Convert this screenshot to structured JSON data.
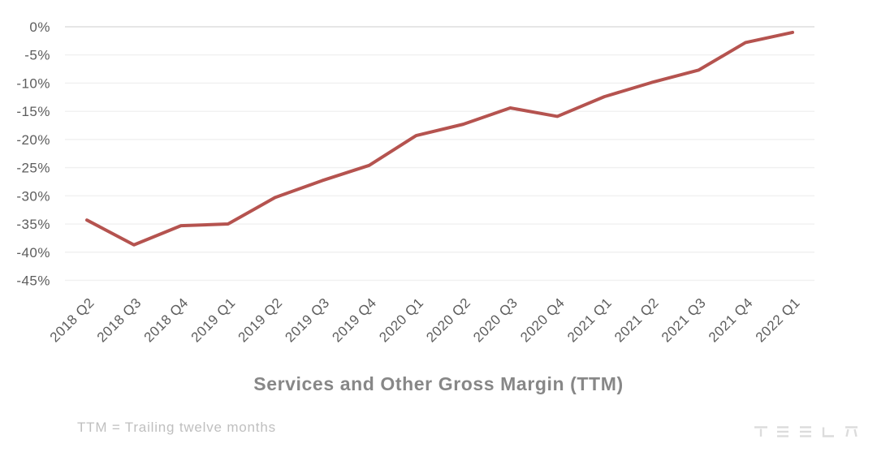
{
  "chart_data": {
    "type": "line",
    "title": "Services and Other Gross Margin (TTM)",
    "footnote": "TTM = Trailing twelve months",
    "categories": [
      "2018 Q2",
      "2018 Q3",
      "2018 Q4",
      "2019 Q1",
      "2019 Q2",
      "2019 Q3",
      "2019 Q4",
      "2020 Q1",
      "2020 Q2",
      "2020 Q3",
      "2020 Q4",
      "2021 Q1",
      "2021 Q2",
      "2021 Q3",
      "2021 Q4",
      "2022 Q1"
    ],
    "series": [
      {
        "name": "Services and Other Gross Margin (TTM)",
        "values": [
          -34.3,
          -38.7,
          -35.3,
          -35.0,
          -30.3,
          -27.3,
          -24.6,
          -19.3,
          -17.3,
          -14.4,
          -15.9,
          -12.4,
          -9.9,
          -7.7,
          -2.8,
          -1.0
        ]
      }
    ],
    "ylabel": "",
    "xlabel": "",
    "ylim": [
      -45,
      0
    ],
    "yticks": [
      0,
      -5,
      -10,
      -15,
      -20,
      -25,
      -30,
      -35,
      -40,
      -45
    ],
    "ytick_labels": [
      "0%",
      "-5%",
      "-10%",
      "-15%",
      "-20%",
      "-25%",
      "-30%",
      "-35%",
      "-40%",
      "-45%"
    ],
    "x_label_rotation_deg": -45,
    "grid": "horizontal",
    "legend": "none",
    "line_color": "#b5534f",
    "gridline_color": "#f0f0f0",
    "zero_gridline_color": "#dedede",
    "tick_label_color": "#5d5d5d",
    "title_color": "#878787",
    "footnote_color": "#bfbfbf"
  },
  "branding": {
    "logo_name": "tesla-wordmark",
    "logo_letters": "TESLA",
    "logo_color": "#dcdcdc"
  }
}
